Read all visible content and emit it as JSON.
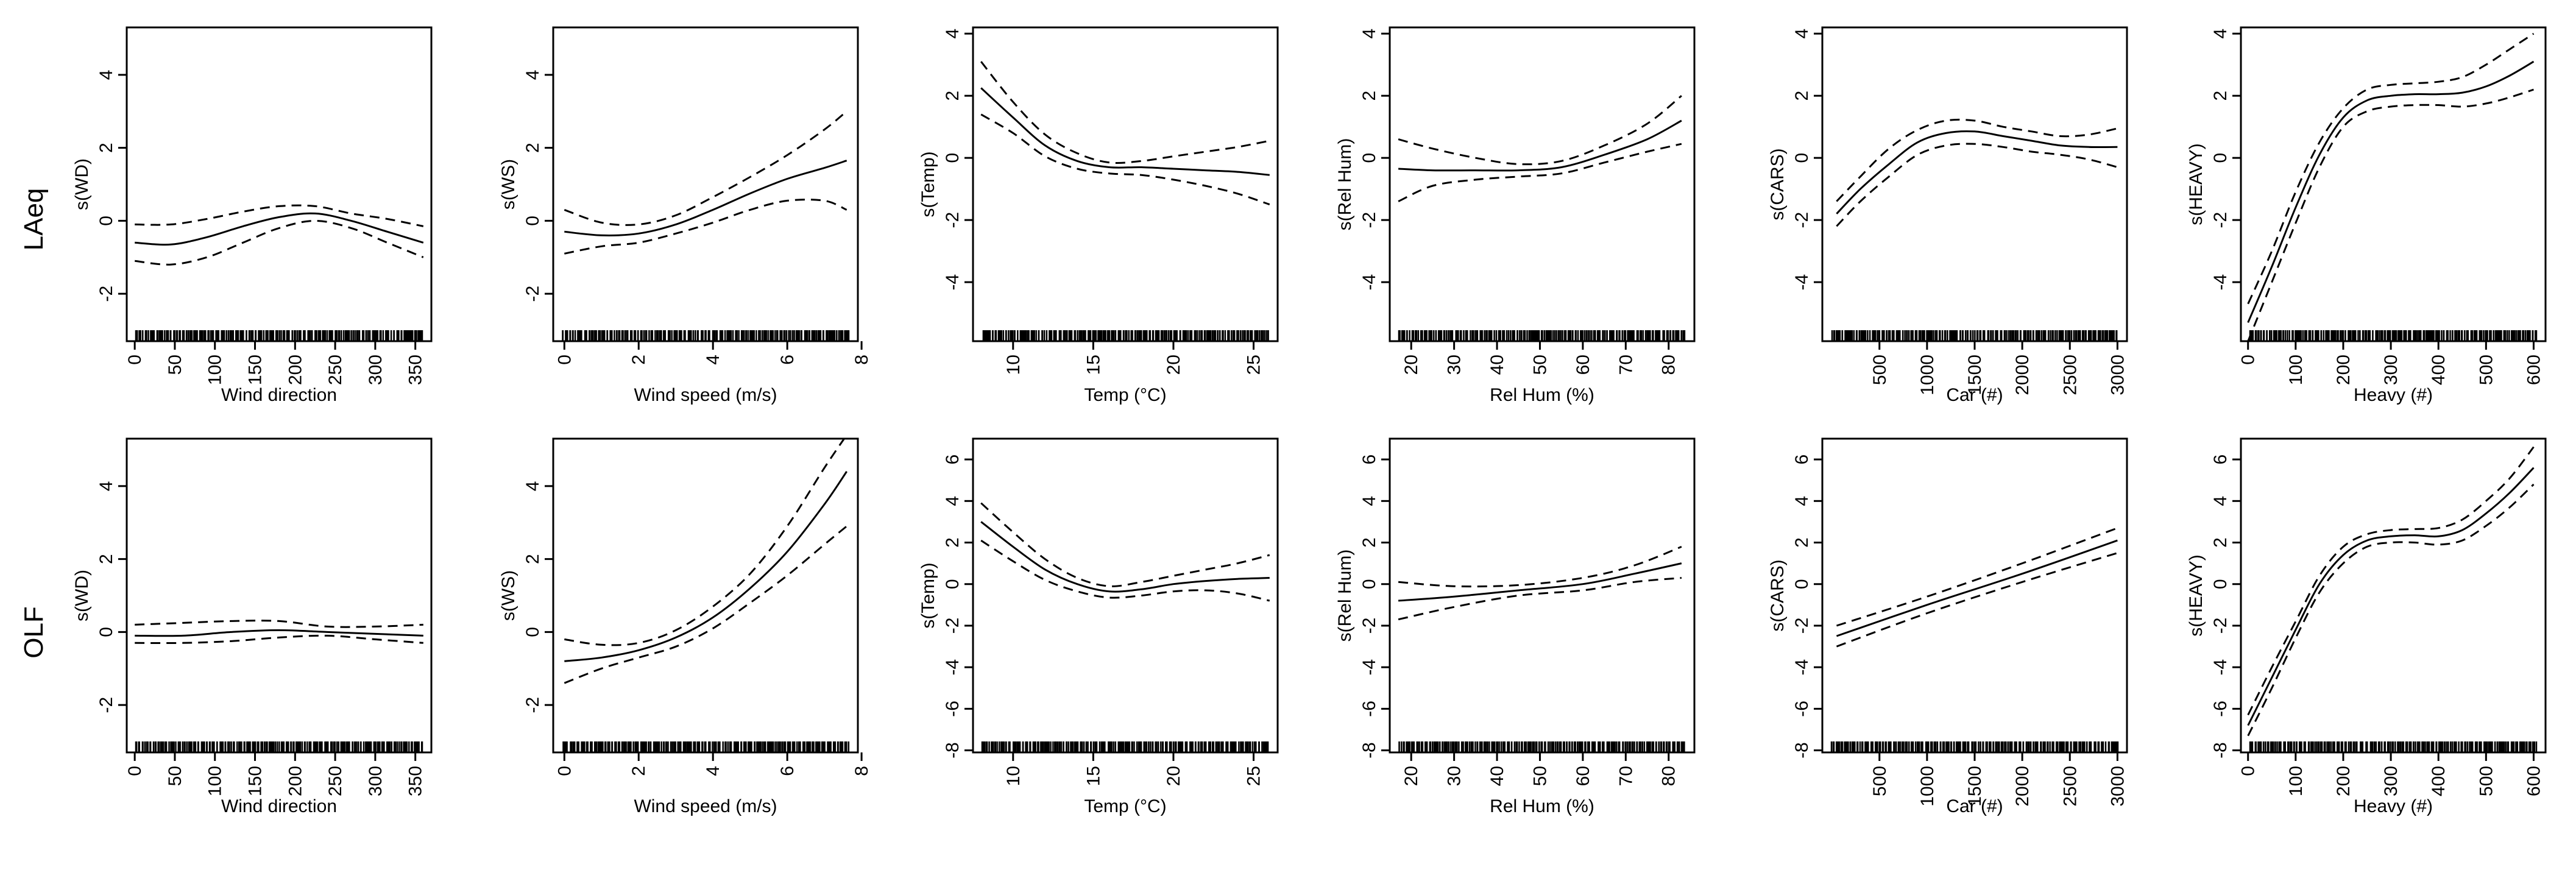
{
  "row_labels": [
    "LAeq",
    "OLF"
  ],
  "chart_data": [
    {
      "type": "line",
      "title": "",
      "xlabel": "Wind direction",
      "ylabel": "s(WD)",
      "xlim": [
        -10,
        370
      ],
      "ylim": [
        -3.3,
        5.3
      ],
      "xticks": [
        0,
        50,
        100,
        150,
        200,
        250,
        300,
        350
      ],
      "yticks": [
        -2,
        0,
        2,
        4
      ],
      "rug": "dense",
      "x": [
        0,
        45,
        90,
        135,
        180,
        225,
        270,
        315,
        360
      ],
      "series": [
        {
          "name": "fit",
          "values": [
            -0.6,
            -0.65,
            -0.45,
            -0.15,
            0.1,
            0.2,
            0.0,
            -0.3,
            -0.6
          ]
        },
        {
          "name": "upper",
          "values": [
            -0.1,
            -0.1,
            0.05,
            0.25,
            0.4,
            0.4,
            0.2,
            0.05,
            -0.15
          ]
        },
        {
          "name": "lower",
          "values": [
            -1.1,
            -1.2,
            -1.0,
            -0.6,
            -0.2,
            0.0,
            -0.2,
            -0.6,
            -1.0
          ]
        }
      ]
    },
    {
      "type": "line",
      "title": "",
      "xlabel": "Wind speed (m/s)",
      "ylabel": "s(WS)",
      "xlim": [
        -0.3,
        7.9
      ],
      "ylim": [
        -3.3,
        5.3
      ],
      "xticks": [
        0,
        2,
        4,
        6,
        8
      ],
      "yticks": [
        -2,
        0,
        2,
        4
      ],
      "rug": "dense",
      "x": [
        0,
        1,
        2,
        3,
        4,
        5,
        6,
        7,
        7.6
      ],
      "series": [
        {
          "name": "fit",
          "values": [
            -0.3,
            -0.4,
            -0.35,
            -0.1,
            0.3,
            0.75,
            1.15,
            1.45,
            1.65
          ]
        },
        {
          "name": "upper",
          "values": [
            0.3,
            -0.05,
            -0.1,
            0.15,
            0.65,
            1.2,
            1.8,
            2.5,
            3.0
          ]
        },
        {
          "name": "lower",
          "values": [
            -0.9,
            -0.7,
            -0.6,
            -0.35,
            -0.05,
            0.3,
            0.55,
            0.55,
            0.3
          ]
        }
      ]
    },
    {
      "type": "line",
      "title": "",
      "xlabel": "Temp (°C)",
      "ylabel": "s(Temp)",
      "xlim": [
        7.5,
        26.5
      ],
      "ylim": [
        -5.9,
        4.2
      ],
      "xticks": [
        10,
        15,
        20,
        25
      ],
      "yticks": [
        -4,
        -2,
        0,
        2,
        4
      ],
      "rug": "dense",
      "x": [
        8,
        10,
        12,
        14,
        16,
        18,
        20,
        22,
        24,
        26
      ],
      "series": [
        {
          "name": "fit",
          "values": [
            2.25,
            1.3,
            0.4,
            -0.1,
            -0.3,
            -0.3,
            -0.35,
            -0.4,
            -0.45,
            -0.55
          ]
        },
        {
          "name": "upper",
          "values": [
            3.1,
            1.8,
            0.75,
            0.15,
            -0.15,
            -0.1,
            0.05,
            0.2,
            0.35,
            0.55
          ]
        },
        {
          "name": "lower",
          "values": [
            1.4,
            0.8,
            0.05,
            -0.35,
            -0.5,
            -0.55,
            -0.7,
            -0.9,
            -1.15,
            -1.5
          ]
        }
      ]
    },
    {
      "type": "line",
      "title": "",
      "xlabel": "Rel Hum (%)",
      "ylabel": "s(Rel Hum)",
      "xlim": [
        15,
        86
      ],
      "ylim": [
        -5.9,
        4.2
      ],
      "xticks": [
        20,
        30,
        40,
        50,
        60,
        70,
        80
      ],
      "yticks": [
        -4,
        -2,
        0,
        2,
        4
      ],
      "rug": "dense",
      "x": [
        17,
        25,
        35,
        45,
        55,
        65,
        75,
        83
      ],
      "series": [
        {
          "name": "fit",
          "values": [
            -0.35,
            -0.4,
            -0.4,
            -0.4,
            -0.3,
            0.1,
            0.6,
            1.2
          ]
        },
        {
          "name": "upper",
          "values": [
            0.6,
            0.3,
            0.0,
            -0.2,
            -0.1,
            0.4,
            1.1,
            2.0
          ]
        },
        {
          "name": "lower",
          "values": [
            -1.4,
            -0.9,
            -0.7,
            -0.6,
            -0.5,
            -0.15,
            0.2,
            0.45
          ]
        }
      ]
    },
    {
      "type": "line",
      "title": "",
      "xlabel": "Car (#)",
      "ylabel": "s(CARS)",
      "xlim": [
        -100,
        3100
      ],
      "ylim": [
        -5.9,
        4.2
      ],
      "xticks": [
        500,
        1000,
        1500,
        2000,
        2500,
        3000
      ],
      "yticks": [
        -4,
        -2,
        0,
        2,
        4
      ],
      "rug": "dense",
      "x": [
        50,
        300,
        600,
        900,
        1200,
        1500,
        1800,
        2100,
        2400,
        2700,
        3000
      ],
      "series": [
        {
          "name": "fit",
          "values": [
            -1.8,
            -1.0,
            -0.2,
            0.5,
            0.8,
            0.85,
            0.7,
            0.55,
            0.4,
            0.35,
            0.35
          ]
        },
        {
          "name": "upper",
          "values": [
            -1.4,
            -0.6,
            0.3,
            0.9,
            1.2,
            1.2,
            1.0,
            0.85,
            0.7,
            0.75,
            0.95
          ]
        },
        {
          "name": "lower",
          "values": [
            -2.2,
            -1.4,
            -0.6,
            0.1,
            0.4,
            0.45,
            0.35,
            0.2,
            0.1,
            -0.05,
            -0.3
          ]
        }
      ]
    },
    {
      "type": "line",
      "title": "",
      "xlabel": "Heavy (#)",
      "ylabel": "s(HEAVY)",
      "xlim": [
        -15,
        625
      ],
      "ylim": [
        -5.9,
        4.2
      ],
      "xticks": [
        0,
        100,
        200,
        300,
        400,
        500,
        600
      ],
      "yticks": [
        -4,
        -2,
        0,
        2,
        4
      ],
      "rug": "dense",
      "x": [
        0,
        50,
        100,
        150,
        200,
        250,
        300,
        350,
        400,
        450,
        500,
        550,
        600
      ],
      "series": [
        {
          "name": "fit",
          "values": [
            -5.3,
            -3.5,
            -1.6,
            0.1,
            1.3,
            1.85,
            2.0,
            2.05,
            2.05,
            2.1,
            2.3,
            2.65,
            3.1
          ]
        },
        {
          "name": "upper",
          "values": [
            -4.7,
            -3.0,
            -1.1,
            0.5,
            1.6,
            2.2,
            2.35,
            2.4,
            2.45,
            2.6,
            3.0,
            3.5,
            4.0
          ]
        },
        {
          "name": "lower",
          "values": [
            -5.9,
            -4.0,
            -2.1,
            -0.3,
            1.0,
            1.5,
            1.65,
            1.7,
            1.7,
            1.65,
            1.75,
            1.95,
            2.2
          ]
        }
      ]
    },
    {
      "type": "line",
      "title": "",
      "xlabel": "Wind direction",
      "ylabel": "s(WD)",
      "xlim": [
        -10,
        370
      ],
      "ylim": [
        -3.3,
        5.3
      ],
      "xticks": [
        0,
        50,
        100,
        150,
        200,
        250,
        300,
        350
      ],
      "yticks": [
        -2,
        0,
        2,
        4
      ],
      "rug": "dense",
      "x": [
        0,
        60,
        120,
        180,
        240,
        300,
        360
      ],
      "series": [
        {
          "name": "fit",
          "values": [
            -0.1,
            -0.1,
            0.0,
            0.05,
            0.0,
            -0.05,
            -0.1
          ]
        },
        {
          "name": "upper",
          "values": [
            0.2,
            0.25,
            0.3,
            0.3,
            0.15,
            0.15,
            0.2
          ]
        },
        {
          "name": "lower",
          "values": [
            -0.3,
            -0.3,
            -0.25,
            -0.15,
            -0.1,
            -0.2,
            -0.3
          ]
        }
      ]
    },
    {
      "type": "line",
      "title": "",
      "xlabel": "Wind speed (m/s)",
      "ylabel": "s(WS)",
      "xlim": [
        -0.3,
        7.9
      ],
      "ylim": [
        -3.3,
        5.3
      ],
      "xticks": [
        0,
        2,
        4,
        6,
        8
      ],
      "yticks": [
        -2,
        0,
        2,
        4
      ],
      "rug": "dense",
      "x": [
        0,
        1,
        2,
        3,
        4,
        5,
        6,
        7,
        7.6
      ],
      "series": [
        {
          "name": "fit",
          "values": [
            -0.8,
            -0.7,
            -0.5,
            -0.15,
            0.4,
            1.2,
            2.2,
            3.5,
            4.4
          ]
        },
        {
          "name": "upper",
          "values": [
            -0.2,
            -0.35,
            -0.3,
            0.05,
            0.7,
            1.6,
            2.9,
            4.5,
            5.4
          ]
        },
        {
          "name": "lower",
          "values": [
            -1.4,
            -1.0,
            -0.7,
            -0.4,
            0.1,
            0.8,
            1.55,
            2.4,
            2.9
          ]
        }
      ]
    },
    {
      "type": "line",
      "title": "",
      "xlabel": "Temp (°C)",
      "ylabel": "s(Temp)",
      "xlim": [
        7.5,
        26.5
      ],
      "ylim": [
        -8.1,
        7.0
      ],
      "xticks": [
        10,
        15,
        20,
        25
      ],
      "yticks": [
        -8,
        -6,
        -4,
        -2,
        0,
        2,
        4,
        6
      ],
      "rug": "dense",
      "x": [
        8,
        10,
        12,
        14,
        16,
        18,
        20,
        22,
        24,
        26
      ],
      "series": [
        {
          "name": "fit",
          "values": [
            3.0,
            1.8,
            0.7,
            0.0,
            -0.35,
            -0.25,
            0.0,
            0.15,
            0.25,
            0.3
          ]
        },
        {
          "name": "upper",
          "values": [
            3.9,
            2.5,
            1.2,
            0.3,
            -0.1,
            0.1,
            0.4,
            0.7,
            1.0,
            1.4
          ]
        },
        {
          "name": "lower",
          "values": [
            2.1,
            1.1,
            0.2,
            -0.35,
            -0.65,
            -0.55,
            -0.35,
            -0.3,
            -0.45,
            -0.8
          ]
        }
      ]
    },
    {
      "type": "line",
      "title": "",
      "xlabel": "Rel Hum (%)",
      "ylabel": "s(Rel Hum)",
      "xlim": [
        15,
        86
      ],
      "ylim": [
        -8.1,
        7.0
      ],
      "xticks": [
        20,
        30,
        40,
        50,
        60,
        70,
        80
      ],
      "yticks": [
        -8,
        -6,
        -4,
        -2,
        0,
        2,
        4,
        6
      ],
      "rug": "dense",
      "x": [
        17,
        30,
        45,
        60,
        72,
        83
      ],
      "series": [
        {
          "name": "fit",
          "values": [
            -0.8,
            -0.6,
            -0.3,
            0.0,
            0.5,
            1.0
          ]
        },
        {
          "name": "upper",
          "values": [
            0.1,
            -0.1,
            -0.05,
            0.3,
            0.9,
            1.8
          ]
        },
        {
          "name": "lower",
          "values": [
            -1.7,
            -1.1,
            -0.55,
            -0.3,
            0.1,
            0.3
          ]
        }
      ]
    },
    {
      "type": "line",
      "title": "",
      "xlabel": "Car (#)",
      "ylabel": "s(CARS)",
      "xlim": [
        -100,
        3100
      ],
      "ylim": [
        -8.1,
        7.0
      ],
      "xticks": [
        500,
        1000,
        1500,
        2000,
        2500,
        3000
      ],
      "yticks": [
        -8,
        -6,
        -4,
        -2,
        0,
        2,
        4,
        6
      ],
      "rug": "dense",
      "x": [
        50,
        1000,
        2000,
        3000
      ],
      "series": [
        {
          "name": "fit",
          "values": [
            -2.5,
            -1.0,
            0.5,
            2.1
          ]
        },
        {
          "name": "upper",
          "values": [
            -2.0,
            -0.6,
            1.0,
            2.7
          ]
        },
        {
          "name": "lower",
          "values": [
            -3.0,
            -1.4,
            0.1,
            1.5
          ]
        }
      ]
    },
    {
      "type": "line",
      "title": "",
      "xlabel": "Heavy (#)",
      "ylabel": "s(HEAVY)",
      "xlim": [
        -15,
        625
      ],
      "ylim": [
        -8.1,
        7.0
      ],
      "xticks": [
        0,
        100,
        200,
        300,
        400,
        500,
        600
      ],
      "yticks": [
        -8,
        -6,
        -4,
        -2,
        0,
        2,
        4,
        6
      ],
      "rug": "dense",
      "x": [
        0,
        50,
        100,
        150,
        200,
        250,
        300,
        350,
        400,
        450,
        500,
        550,
        600
      ],
      "series": [
        {
          "name": "fit",
          "values": [
            -6.8,
            -4.5,
            -2.2,
            0.0,
            1.4,
            2.1,
            2.3,
            2.35,
            2.3,
            2.6,
            3.4,
            4.4,
            5.6
          ]
        },
        {
          "name": "upper",
          "values": [
            -6.3,
            -4.0,
            -1.8,
            0.4,
            1.8,
            2.4,
            2.6,
            2.65,
            2.7,
            3.1,
            4.0,
            5.1,
            6.6
          ]
        },
        {
          "name": "lower",
          "values": [
            -7.3,
            -5.0,
            -2.6,
            -0.4,
            1.0,
            1.8,
            2.0,
            2.0,
            1.9,
            2.1,
            2.8,
            3.7,
            4.8
          ]
        }
      ]
    }
  ]
}
